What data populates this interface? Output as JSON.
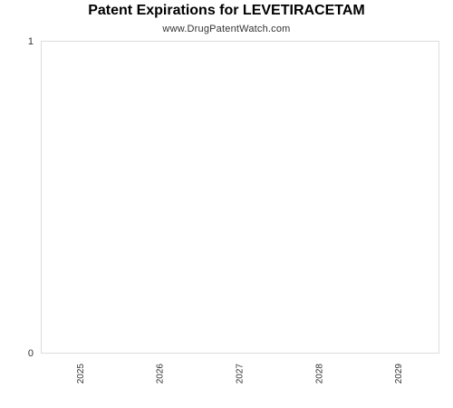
{
  "chart_data": {
    "type": "bar",
    "title": "Patent Expirations for LEVETIRACETAM",
    "subtitle": "www.DrugPatentWatch.com",
    "categories": [
      "2025",
      "2026",
      "2027",
      "2028",
      "2029"
    ],
    "values": [
      0,
      0,
      0,
      0,
      0
    ],
    "xlabel": "",
    "ylabel": "",
    "ylim": [
      0,
      1
    ],
    "yticks": [
      "0",
      "1"
    ],
    "grid": false,
    "legend": "none",
    "colors": {
      "plot_border": "#dddddd",
      "bar": "#4a90d9",
      "text": "#333333"
    }
  }
}
